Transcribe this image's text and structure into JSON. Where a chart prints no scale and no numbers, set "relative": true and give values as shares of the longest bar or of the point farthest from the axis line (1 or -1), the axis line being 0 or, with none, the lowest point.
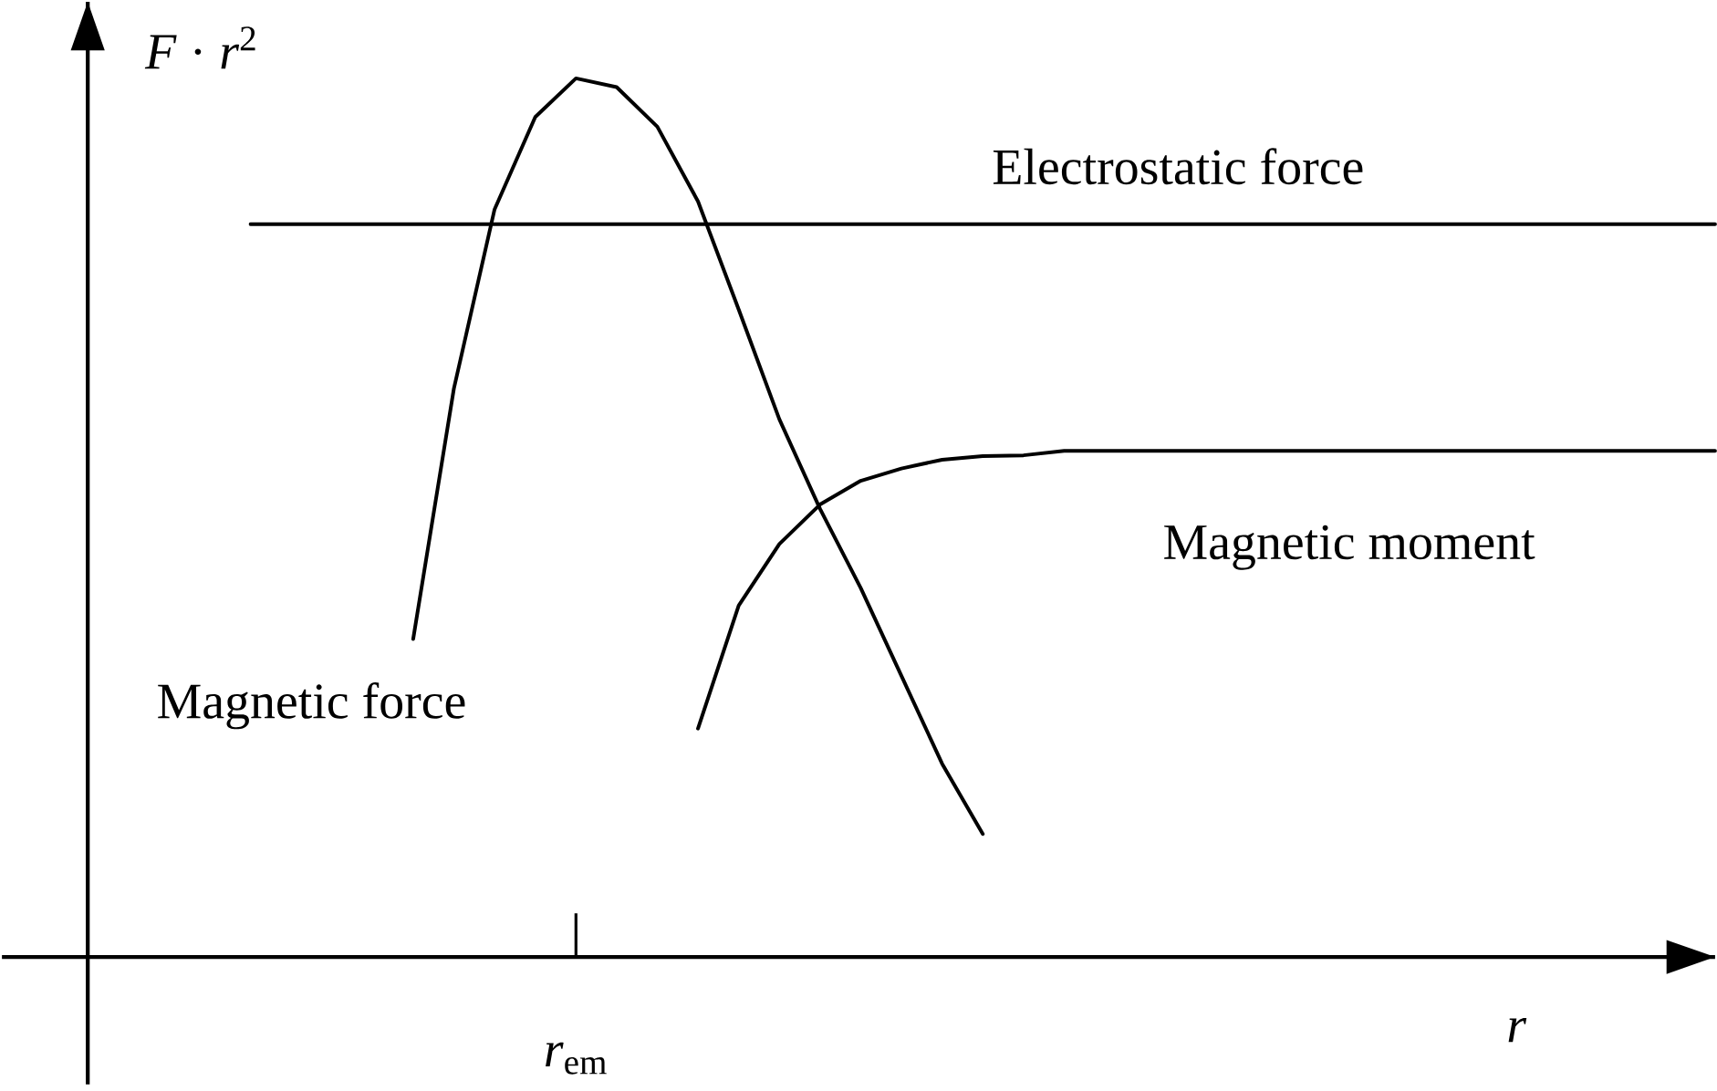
{
  "chart_data": {
    "type": "line",
    "relative": true,
    "xlabel": "*r*",
    "ylabel": "*F* · *r*$^{2}$",
    "line_style": "solid",
    "marker": "none",
    "categories": [
      null,
      null,
      null,
      null,
      null,
      null,
      null,
      null,
      null,
      null,
      null,
      null,
      null,
      null,
      null,
      null,
      null,
      null,
      null,
      null,
      null,
      null,
      null,
      null,
      null,
      null,
      null,
      null,
      null,
      null,
      null,
      null,
      null,
      null,
      null,
      null,
      null,
      null,
      null,
      null,
      null
    ],
    "series": [
      {
        "name": "Magnetic force",
        "color": "#000000",
        "values": [
          null,
          null,
          null,
          null,
          null,
          null,
          null,
          null,
          0.362,
          0.647,
          0.851,
          0.956,
          1.0,
          0.99,
          0.945,
          0.86,
          0.737,
          0.612,
          0.51,
          0.42,
          0.32,
          0.22,
          0.14,
          null,
          null,
          null,
          null,
          null,
          null,
          null,
          null,
          null,
          null,
          null,
          null,
          null,
          null,
          null,
          null,
          null,
          null
        ]
      },
      {
        "name": "Electrostatic force",
        "color": "#000000",
        "values": [
          null,
          null,
          null,
          null,
          0.834,
          0.834,
          0.834,
          0.834,
          0.834,
          0.834,
          0.834,
          0.834,
          0.834,
          0.834,
          0.834,
          0.834,
          0.834,
          0.834,
          0.834,
          0.834,
          0.834,
          0.834,
          0.834,
          0.834,
          0.834,
          0.834,
          0.834,
          0.834,
          0.834,
          0.834,
          0.834,
          0.834,
          0.834,
          0.834,
          0.834,
          0.834,
          0.834,
          0.834,
          0.834,
          0.834,
          0.834
        ]
      },
      {
        "name": "Magnetic moment",
        "color": "#000000",
        "values": [
          null,
          null,
          null,
          null,
          null,
          null,
          null,
          null,
          null,
          null,
          null,
          null,
          null,
          null,
          null,
          0.26,
          0.4,
          0.47,
          0.515,
          0.542,
          0.556,
          0.566,
          0.57,
          0.571,
          0.576,
          0.576,
          0.576,
          0.576,
          0.576,
          0.576,
          0.576,
          0.576,
          0.576,
          0.576,
          0.576,
          0.576,
          0.576,
          0.576,
          0.576,
          0.576,
          0.576
        ]
      }
    ],
    "annotations": [
      "*r*$_{em}$"
    ]
  }
}
